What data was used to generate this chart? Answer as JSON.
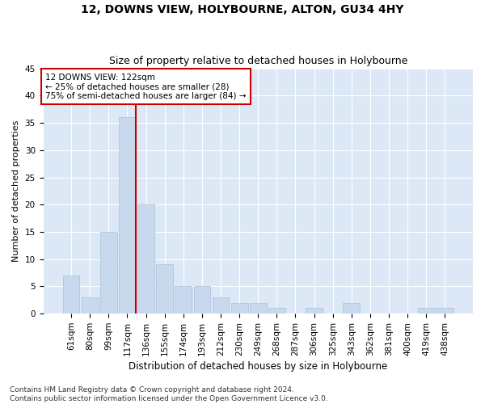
{
  "title": "12, DOWNS VIEW, HOLYBOURNE, ALTON, GU34 4HY",
  "subtitle": "Size of property relative to detached houses in Holybourne",
  "xlabel": "Distribution of detached houses by size in Holybourne",
  "ylabel": "Number of detached properties",
  "categories": [
    "61sqm",
    "80sqm",
    "99sqm",
    "117sqm",
    "136sqm",
    "155sqm",
    "174sqm",
    "193sqm",
    "212sqm",
    "230sqm",
    "249sqm",
    "268sqm",
    "287sqm",
    "306sqm",
    "325sqm",
    "343sqm",
    "362sqm",
    "381sqm",
    "400sqm",
    "419sqm",
    "438sqm"
  ],
  "values": [
    7,
    3,
    15,
    36,
    20,
    9,
    5,
    5,
    3,
    2,
    2,
    1,
    0,
    1,
    0,
    2,
    0,
    0,
    0,
    1,
    1
  ],
  "bar_color": "#c8d9ee",
  "bar_edge_color": "#a8c0dc",
  "vline_color": "#cc0000",
  "annotation_text": "12 DOWNS VIEW: 122sqm\n← 25% of detached houses are smaller (28)\n75% of semi-detached houses are larger (84) →",
  "annotation_box_facecolor": "#ffffff",
  "annotation_box_edgecolor": "#cc0000",
  "ylim": [
    0,
    45
  ],
  "yticks": [
    0,
    5,
    10,
    15,
    20,
    25,
    30,
    35,
    40,
    45
  ],
  "fig_bg": "#ffffff",
  "ax_bg": "#dce8f5",
  "grid_color": "#ffffff",
  "footnote": "Contains HM Land Registry data © Crown copyright and database right 2024.\nContains public sector information licensed under the Open Government Licence v3.0.",
  "title_fontsize": 10,
  "subtitle_fontsize": 9,
  "xlabel_fontsize": 8.5,
  "ylabel_fontsize": 8,
  "tick_fontsize": 7.5,
  "annot_fontsize": 7.5,
  "footnote_fontsize": 6.5
}
